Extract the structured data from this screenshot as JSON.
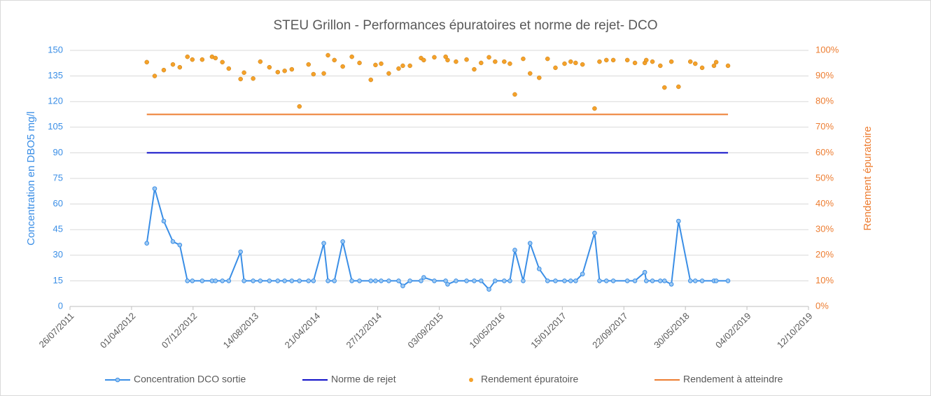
{
  "chart_data": {
    "type": "line",
    "title": "STEU Grillon - Performances  épuratoires et norme de rejet- DCO",
    "y_label": "Concentration en DBO5 mg/l",
    "y2_label": "Rendement épuratoire",
    "xlim": [
      "26/07/2011",
      "12/10/2019"
    ],
    "xticks": [
      "26/07/2011",
      "01/04/2012",
      "07/12/2012",
      "14/08/2013",
      "21/04/2014",
      "27/12/2014",
      "03/09/2015",
      "10/05/2016",
      "15/01/2017",
      "22/09/2017",
      "30/05/2018",
      "04/02/2019",
      "12/10/2019"
    ],
    "ylim": [
      0,
      150
    ],
    "yticks": [
      0,
      15,
      30,
      45,
      60,
      75,
      90,
      105,
      120,
      135,
      150
    ],
    "y2lim": [
      0,
      100
    ],
    "y2ticks": [
      {
        "value": 0,
        "label": "0%"
      },
      {
        "value": 10,
        "label": "10%"
      },
      {
        "value": 20,
        "label": "20%"
      },
      {
        "value": 30,
        "label": "30%"
      },
      {
        "value": 40,
        "label": "40%"
      },
      {
        "value": 50,
        "label": "50%"
      },
      {
        "value": 60,
        "label": "60%"
      },
      {
        "value": 70,
        "label": "70%"
      },
      {
        "value": 80,
        "label": "80%"
      },
      {
        "value": 90,
        "label": "90%"
      },
      {
        "value": 100,
        "label": "100%"
      }
    ],
    "grid": true,
    "legend": "bottom",
    "series": [
      {
        "name": "Concentration DCO sortie",
        "type": "line",
        "marker": true,
        "color": "#3a8ee6",
        "x": [
          "02/06/2012",
          "04/07/2012",
          "10/08/2012",
          "16/09/2012",
          "14/10/2012",
          "14/11/2012",
          "04/12/2012",
          "13/01/2013",
          "22/02/2013",
          "08/03/2013",
          "05/04/2013",
          "01/05/2013",
          "18/06/2013",
          "02/07/2013",
          "08/08/2013",
          "06/09/2013",
          "13/10/2013",
          "16/11/2013",
          "14/12/2013",
          "12/01/2014",
          "12/02/2014",
          "21/03/2014",
          "10/04/2014",
          "22/05/2014",
          "08/06/2014",
          "04/07/2014",
          "07/08/2014",
          "13/09/2014",
          "14/10/2014",
          "29/11/2014",
          "18/12/2014",
          "10/01/2015",
          "10/02/2015",
          "22/03/2015",
          "08/04/2015",
          "07/05/2015",
          "21/06/2015",
          "02/07/2015",
          "14/08/2015",
          "29/09/2015",
          "07/10/2015",
          "10/11/2015",
          "23/12/2015",
          "23/01/2016",
          "20/02/2016",
          "23/03/2016",
          "17/04/2016",
          "24/05/2016",
          "16/06/2016",
          "06/07/2016",
          "09/08/2016",
          "06/09/2016",
          "13/10/2016",
          "16/11/2016",
          "18/12/2016",
          "24/01/2017",
          "18/02/2017",
          "10/03/2017",
          "07/04/2017",
          "26/05/2017",
          "15/06/2017",
          "13/07/2017",
          "10/08/2017",
          "06/10/2017",
          "06/11/2017",
          "16/12/2017",
          "22/12/2017",
          "16/01/2018",
          "17/02/2018",
          "06/03/2018",
          "03/04/2018",
          "02/05/2018",
          "19/06/2018",
          "09/07/2018",
          "06/08/2018",
          "23/09/2018",
          "02/10/2018",
          "19/11/2018"
        ],
        "values": [
          37,
          69,
          50,
          38,
          36,
          15,
          15,
          15,
          15,
          15,
          15,
          15,
          32,
          15,
          15,
          15,
          15,
          15,
          15,
          15,
          15,
          15,
          15,
          37,
          15,
          15,
          38,
          15,
          15,
          15,
          15,
          15,
          15,
          15,
          12,
          15,
          15,
          17,
          15,
          15,
          13,
          15,
          15,
          15,
          15,
          10,
          15,
          15,
          15,
          33,
          15,
          37,
          22,
          15,
          15,
          15,
          15,
          15,
          19,
          43,
          15,
          15,
          15,
          15,
          15,
          20,
          15,
          15,
          15,
          15,
          13,
          50,
          15,
          15,
          15,
          15,
          15,
          15
        ]
      },
      {
        "name": "Norme de rejet",
        "type": "line",
        "color": "#1010c8",
        "x": [
          "02/06/2012",
          "19/11/2018"
        ],
        "values": [
          90,
          90
        ]
      },
      {
        "name": "Rendement épuratoire",
        "type": "scatter",
        "axis": "y2",
        "color": "#f5a12a",
        "x": [
          "02/06/2012",
          "04/07/2012",
          "10/08/2012",
          "16/09/2012",
          "14/10/2012",
          "14/11/2012",
          "04/12/2012",
          "13/01/2013",
          "22/02/2013",
          "08/03/2013",
          "05/04/2013",
          "01/05/2013",
          "18/06/2013",
          "02/07/2013",
          "08/08/2013",
          "06/09/2013",
          "13/10/2013",
          "16/11/2013",
          "14/12/2013",
          "12/01/2014",
          "12/02/2014",
          "21/03/2014",
          "10/04/2014",
          "22/05/2014",
          "08/06/2014",
          "04/07/2014",
          "07/08/2014",
          "13/09/2014",
          "14/10/2014",
          "29/11/2014",
          "18/12/2014",
          "10/01/2015",
          "10/02/2015",
          "22/03/2015",
          "08/04/2015",
          "07/05/2015",
          "21/06/2015",
          "02/07/2015",
          "14/08/2015",
          "29/09/2015",
          "07/10/2015",
          "10/11/2015",
          "23/12/2015",
          "23/01/2016",
          "20/02/2016",
          "23/03/2016",
          "17/04/2016",
          "24/05/2016",
          "16/06/2016",
          "06/07/2016",
          "09/08/2016",
          "06/09/2016",
          "13/10/2016",
          "16/11/2016",
          "18/12/2016",
          "24/01/2017",
          "18/02/2017",
          "10/03/2017",
          "07/04/2017",
          "26/05/2017",
          "15/06/2017",
          "13/07/2017",
          "10/08/2017",
          "06/10/2017",
          "06/11/2017",
          "16/12/2017",
          "22/12/2017",
          "16/01/2018",
          "17/02/2018",
          "06/03/2018",
          "03/04/2018",
          "02/05/2018",
          "19/06/2018",
          "09/07/2018",
          "06/08/2018",
          "23/09/2018",
          "02/10/2018",
          "19/11/2018"
        ],
        "values": [
          95.4,
          90,
          92.3,
          94.5,
          93.4,
          97.5,
          96.4,
          96.4,
          97.5,
          97,
          95.4,
          92.9,
          88.8,
          91.3,
          89,
          95.6,
          93.4,
          91.5,
          92,
          92.6,
          78.1,
          94.5,
          90.7,
          91,
          98.1,
          96.2,
          93.7,
          97.5,
          95.1,
          88.5,
          94.3,
          94.8,
          91,
          92.9,
          94,
          94,
          97,
          96.2,
          97.3,
          97.5,
          96.2,
          95.6,
          96.4,
          92.6,
          95.1,
          97.3,
          95.6,
          95.6,
          94.8,
          82.8,
          96.7,
          91,
          89.3,
          96.7,
          93.2,
          94.8,
          95.6,
          95.1,
          94.5,
          77.3,
          95.6,
          96.2,
          96.2,
          96.2,
          95.1,
          95.1,
          96.2,
          95.6,
          94,
          85.5,
          95.6,
          85.8,
          95.6,
          94.8,
          93.2,
          94,
          95.4,
          94
        ]
      },
      {
        "name": "Rendement à atteindre",
        "type": "line",
        "axis": "y2",
        "color": "#ed7d31",
        "x": [
          "02/06/2012",
          "19/11/2018"
        ],
        "values": [
          75,
          75
        ]
      }
    ]
  }
}
